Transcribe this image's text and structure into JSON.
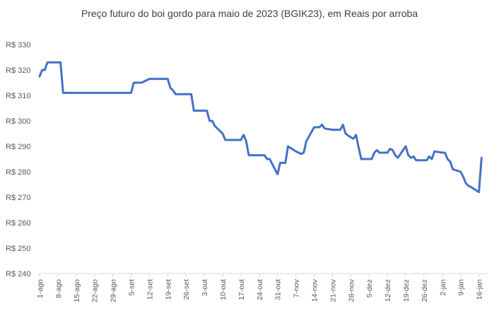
{
  "chart_data": {
    "type": "line",
    "title": "Preço futuro  do boi gordo para maio de 2023 (BGIK23), em Reais por arroba",
    "xlabel": "",
    "ylabel": "",
    "ylim": [
      240,
      330
    ],
    "y_ticks": [
      240,
      250,
      260,
      270,
      280,
      290,
      300,
      310,
      320,
      330
    ],
    "y_tick_labels": [
      "R$ 240",
      "R$ 250",
      "R$ 260",
      "R$ 270",
      "R$ 280",
      "R$ 290",
      "R$ 300",
      "R$ 310",
      "R$ 320",
      "R$ 330"
    ],
    "x_tick_labels": [
      "1-ago",
      "8-ago",
      "15-ago",
      "22-ago",
      "29-ago",
      "5-set",
      "12-set",
      "19-set",
      "26-set",
      "3-out",
      "10-out",
      "17-out",
      "24-out",
      "31-out",
      "7-nov",
      "14-nov",
      "21-nov",
      "28-nov",
      "5-dez",
      "12-dez",
      "19-dez",
      "26-dez",
      "2-jan",
      "9-jan",
      "16-jan"
    ],
    "grid": false,
    "legend": "none",
    "line_color": "#4472C4",
    "series": [
      {
        "values": [
          {
            "x": "1-ago",
            "y": 317.5
          },
          {
            "x": "2-ago",
            "y": 320
          },
          {
            "x": "3-ago",
            "y": 320
          },
          {
            "x": "4-ago",
            "y": 323
          },
          {
            "x": "5-ago",
            "y": 323
          },
          {
            "x": "8-ago",
            "y": 323
          },
          {
            "x": "9-ago",
            "y": 323
          },
          {
            "x": "10-ago",
            "y": 311
          },
          {
            "x": "11-ago",
            "y": 311
          },
          {
            "x": "2-set",
            "y": 311
          },
          {
            "x": "5-set",
            "y": 311
          },
          {
            "x": "6-set",
            "y": 315
          },
          {
            "x": "8-set",
            "y": 315
          },
          {
            "x": "9-set",
            "y": 315
          },
          {
            "x": "12-set",
            "y": 316.5
          },
          {
            "x": "13-set",
            "y": 316.5
          },
          {
            "x": "19-set",
            "y": 316.5
          },
          {
            "x": "20-set",
            "y": 313
          },
          {
            "x": "21-set",
            "y": 312
          },
          {
            "x": "22-set",
            "y": 310.5
          },
          {
            "x": "23-set",
            "y": 310.5
          },
          {
            "x": "28-set",
            "y": 310.5
          },
          {
            "x": "29-set",
            "y": 304
          },
          {
            "x": "30-set",
            "y": 304
          },
          {
            "x": "4-out",
            "y": 304
          },
          {
            "x": "5-out",
            "y": 300
          },
          {
            "x": "6-out",
            "y": 300
          },
          {
            "x": "7-out",
            "y": 298
          },
          {
            "x": "10-out",
            "y": 295
          },
          {
            "x": "11-out",
            "y": 292.5
          },
          {
            "x": "12-out",
            "y": 292.5
          },
          {
            "x": "13-out",
            "y": 292.5
          },
          {
            "x": "17-out",
            "y": 292.5
          },
          {
            "x": "18-out",
            "y": 294.5
          },
          {
            "x": "19-out",
            "y": 292
          },
          {
            "x": "20-out",
            "y": 286.5
          },
          {
            "x": "21-out",
            "y": 286.5
          },
          {
            "x": "26-out",
            "y": 286.5
          },
          {
            "x": "27-out",
            "y": 285
          },
          {
            "x": "28-out",
            "y": 285
          },
          {
            "x": "31-out",
            "y": 279
          },
          {
            "x": "1-nov",
            "y": 283.5
          },
          {
            "x": "3-nov",
            "y": 283.5
          },
          {
            "x": "4-nov",
            "y": 290
          },
          {
            "x": "7-nov",
            "y": 288
          },
          {
            "x": "8-nov",
            "y": 287.5
          },
          {
            "x": "9-nov",
            "y": 287
          },
          {
            "x": "10-nov",
            "y": 287.5
          },
          {
            "x": "11-nov",
            "y": 292
          },
          {
            "x": "14-nov",
            "y": 297.5
          },
          {
            "x": "16-nov",
            "y": 297.5
          },
          {
            "x": "17-nov",
            "y": 298.5
          },
          {
            "x": "18-nov",
            "y": 297
          },
          {
            "x": "21-nov",
            "y": 296.5
          },
          {
            "x": "24-nov",
            "y": 296.5
          },
          {
            "x": "25-nov",
            "y": 298.5
          },
          {
            "x": "26-nov",
            "y": 295
          },
          {
            "x": "28-nov",
            "y": 293.5
          },
          {
            "x": "29-nov",
            "y": 293
          },
          {
            "x": "30-nov",
            "y": 294.5
          },
          {
            "x": "1-dez",
            "y": 289.5
          },
          {
            "x": "2-dez",
            "y": 285
          },
          {
            "x": "5-dez",
            "y": 285
          },
          {
            "x": "6-dez",
            "y": 285
          },
          {
            "x": "7-dez",
            "y": 287.5
          },
          {
            "x": "8-dez",
            "y": 288.5
          },
          {
            "x": "9-dez",
            "y": 287.5
          },
          {
            "x": "12-dez",
            "y": 287.5
          },
          {
            "x": "13-dez",
            "y": 289
          },
          {
            "x": "14-dez",
            "y": 288.5
          },
          {
            "x": "15-dez",
            "y": 286.5
          },
          {
            "x": "16-dez",
            "y": 285.5
          },
          {
            "x": "19-dez",
            "y": 290
          },
          {
            "x": "20-dez",
            "y": 286.5
          },
          {
            "x": "21-dez",
            "y": 285.5
          },
          {
            "x": "22-dez",
            "y": 286
          },
          {
            "x": "23-dez",
            "y": 284.5
          },
          {
            "x": "26-dez",
            "y": 284.5
          },
          {
            "x": "27-dez",
            "y": 284.5
          },
          {
            "x": "28-dez",
            "y": 286
          },
          {
            "x": "29-dez",
            "y": 285
          },
          {
            "x": "30-dez",
            "y": 288
          },
          {
            "x": "2-jan",
            "y": 287.5
          },
          {
            "x": "3-jan",
            "y": 287.5
          },
          {
            "x": "4-jan",
            "y": 285
          },
          {
            "x": "5-jan",
            "y": 284
          },
          {
            "x": "6-jan",
            "y": 281
          },
          {
            "x": "9-jan",
            "y": 280
          },
          {
            "x": "10-jan",
            "y": 278
          },
          {
            "x": "11-jan",
            "y": 275.5
          },
          {
            "x": "12-jan",
            "y": 274.5
          },
          {
            "x": "13-jan",
            "y": 274
          },
          {
            "x": "16-jan",
            "y": 272
          },
          {
            "x": "17-jan",
            "y": 285.5
          }
        ]
      }
    ]
  }
}
